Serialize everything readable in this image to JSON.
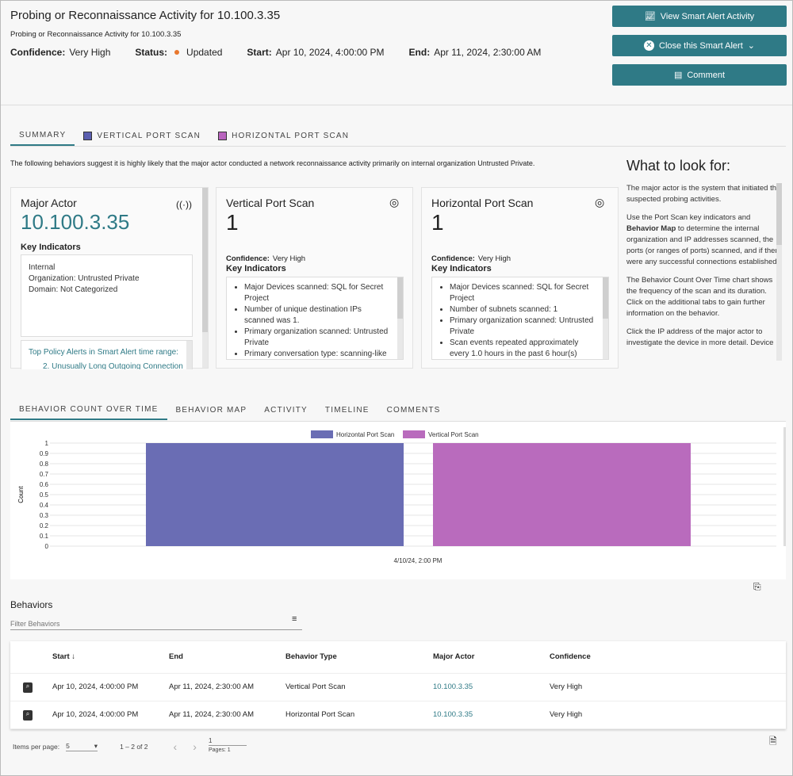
{
  "header": {
    "title": "Probing or Reconnaissance Activity for 10.100.3.35",
    "subtitle": "Probing or Reconnaissance Activity for 10.100.3.35",
    "confidence_label": "Confidence:",
    "confidence": "Very High",
    "status_label": "Status:",
    "status": "Updated",
    "status_color": "#e8772e",
    "start_label": "Start:",
    "start": "Apr 10, 2024, 4:00:00 PM",
    "end_label": "End:",
    "end": "Apr 11, 2024, 2:30:00 AM"
  },
  "actions": {
    "view": "View Smart Alert Activity",
    "close": "Close this Smart Alert",
    "comment": "Comment",
    "color": "#2f7a86"
  },
  "top_tabs": [
    {
      "label": "SUMMARY"
    },
    {
      "label": "VERTICAL PORT SCAN",
      "color": "#5b5fb0"
    },
    {
      "label": "HORIZONTAL PORT SCAN",
      "color": "#b964be"
    }
  ],
  "summary_text": "The following behaviors suggest it is highly likely that the major actor conducted a network reconnaissance activity primarily on internal organization Untrusted Private.",
  "cards": {
    "major": {
      "title": "Major Actor",
      "ip": "10.100.3.35",
      "ki": "Key Indicators",
      "lines": [
        "Internal",
        "Organization: Untrusted Private",
        "Domain: Not Categorized"
      ],
      "alerts_title": "Top Policy Alerts in Smart Alert time range:",
      "alert_item": "2. Unusually Long Outgoing Connection"
    },
    "vertical": {
      "title": "Vertical Port Scan",
      "count": "1",
      "conf_label": "Confidence:",
      "conf": "Very High",
      "ki": "Key Indicators",
      "items": [
        "Major Devices scanned: SQL for Secret Project",
        "Number of unique destination IPs scanned was 1.",
        "Primary organization scanned: Untrusted Private",
        "Primary conversation type: scanning-like TCP"
      ]
    },
    "horizontal": {
      "title": "Horizontal Port Scan",
      "count": "1",
      "conf_label": "Confidence:",
      "conf": "Very High",
      "ki": "Key Indicators",
      "items": [
        "Major Devices scanned: SQL for Secret Project",
        "Number of subnets scanned: 1",
        "Primary organization scanned: Untrusted Private",
        "Scan events repeated approximately every 1.0 hours in the past 6 hour(s)"
      ]
    }
  },
  "side": {
    "title": "What to look for:",
    "p1": "The major actor is the system that initiated the suspected probing activities.",
    "p2a": "Use the Port Scan key indicators and ",
    "p2b": "Behavior Map",
    "p2c": " to determine the internal organization and IP addresses scanned, the ports (or ranges of ports) scanned, and if there were any successful connections established.",
    "p3": "The Behavior Count Over Time chart shows the frequency of the scan and its duration. Click on the additional tabs to gain further information on the behavior.",
    "p4": "Click the IP address of the major actor to investigate the device in more detail. Device"
  },
  "bottom_tabs": [
    "BEHAVIOR COUNT OVER TIME",
    "BEHAVIOR MAP",
    "ACTIVITY",
    "TIMELINE",
    "COMMENTS"
  ],
  "chart_data": {
    "type": "bar",
    "categories": [
      "4/10/24, 2:00 PM"
    ],
    "ylabel": "Count",
    "ylim": [
      0,
      1
    ],
    "yticks": [
      "0",
      "0.1",
      "0.2",
      "0.3",
      "0.4",
      "0.5",
      "0.6",
      "0.7",
      "0.8",
      "0.9",
      "1"
    ],
    "legend_position": "top",
    "grid": true,
    "series": [
      {
        "name": "Horizontal Port Scan",
        "values": [
          1
        ],
        "color": "#6a6db4"
      },
      {
        "name": "Vertical Port Scan",
        "values": [
          1
        ],
        "color": "#b96bbd"
      }
    ]
  },
  "behaviors": {
    "title": "Behaviors",
    "filter_placeholder": "Filter Behaviors",
    "columns": [
      "Start",
      "End",
      "Behavior Type",
      "Major Actor",
      "Confidence"
    ],
    "rows": [
      [
        "Apr 10, 2024, 4:00:00 PM",
        "Apr 11, 2024, 2:30:00 AM",
        "Vertical Port Scan",
        "10.100.3.35",
        "Very High"
      ],
      [
        "Apr 10, 2024, 4:00:00 PM",
        "Apr 11, 2024, 2:30:00 AM",
        "Horizontal Port Scan",
        "10.100.3.35",
        "Very High"
      ]
    ],
    "items_per_page_label": "Items per page:",
    "items_per_page": "5",
    "range": "1 – 2 of 2",
    "page": "1",
    "pages": "Pages: 1"
  }
}
